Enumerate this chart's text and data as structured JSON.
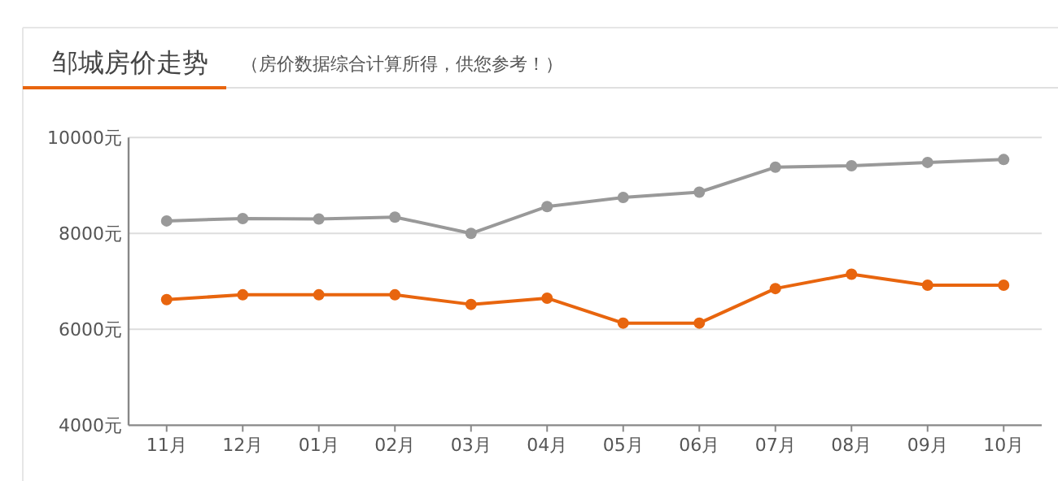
{
  "chart_data": {
    "type": "line",
    "title": "邹城房价走势",
    "subtitle": "（房价数据综合计算所得，供您参考！）",
    "categories": [
      "11月",
      "12月",
      "01月",
      "02月",
      "03月",
      "04月",
      "05月",
      "06月",
      "07月",
      "08月",
      "09月",
      "10月"
    ],
    "series": [
      {
        "color": "#999999",
        "values": [
          8260,
          8310,
          8300,
          8340,
          8000,
          8560,
          8750,
          8860,
          9380,
          9410,
          9480,
          9540
        ]
      },
      {
        "color": "#e8650e",
        "values": [
          6620,
          6720,
          6720,
          6720,
          6520,
          6650,
          6130,
          6130,
          6850,
          7150,
          6920,
          6920
        ]
      }
    ],
    "ylim": [
      4000,
      10000
    ],
    "yticks": [
      {
        "value": 4000,
        "label": "4000元"
      },
      {
        "value": 6000,
        "label": "6000元"
      },
      {
        "value": 8000,
        "label": "8000元"
      },
      {
        "value": 10000,
        "label": "10000元"
      }
    ],
    "grid": "y",
    "marker": "circle",
    "line_style": "solid"
  }
}
